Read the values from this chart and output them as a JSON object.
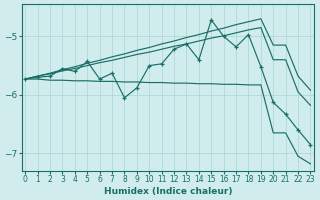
{
  "xlabel": "Humidex (Indice chaleur)",
  "bg_color": "#d0ecec",
  "line_color": "#1a6e6a",
  "xlim": [
    -0.3,
    23.3
  ],
  "ylim": [
    -7.3,
    -4.45
  ],
  "yticks": [
    -7,
    -6,
    -5
  ],
  "xticks": [
    0,
    1,
    2,
    3,
    4,
    5,
    6,
    7,
    8,
    9,
    10,
    11,
    12,
    13,
    14,
    15,
    16,
    17,
    18,
    19,
    20,
    21,
    22,
    23
  ],
  "upper_x": [
    0,
    1,
    2,
    3,
    4,
    5,
    6,
    7,
    8,
    9,
    10,
    11,
    12,
    13,
    14,
    15,
    16,
    17,
    18,
    19,
    20,
    21,
    22,
    23
  ],
  "upper_y": [
    -5.73,
    -5.68,
    -5.63,
    -5.57,
    -5.52,
    -5.46,
    -5.41,
    -5.35,
    -5.3,
    -5.24,
    -5.19,
    -5.13,
    -5.08,
    -5.02,
    -4.97,
    -4.91,
    -4.86,
    -4.8,
    -4.75,
    -4.7,
    -5.15,
    -5.15,
    -5.68,
    -5.92
  ],
  "mid_x": [
    0,
    1,
    2,
    3,
    4,
    5,
    6,
    7,
    8,
    9,
    10,
    11,
    12,
    13,
    14,
    15,
    16,
    17,
    18,
    19,
    20,
    21,
    22,
    23
  ],
  "mid_y": [
    -5.73,
    -5.68,
    -5.64,
    -5.59,
    -5.55,
    -5.5,
    -5.45,
    -5.41,
    -5.36,
    -5.31,
    -5.27,
    -5.22,
    -5.17,
    -5.13,
    -5.08,
    -5.03,
    -4.99,
    -4.94,
    -4.89,
    -4.85,
    -5.4,
    -5.4,
    -5.95,
    -6.18
  ],
  "lower_x": [
    0,
    1,
    2,
    3,
    4,
    5,
    6,
    7,
    8,
    9,
    10,
    11,
    12,
    13,
    14,
    15,
    16,
    17,
    18,
    19,
    20,
    21,
    22,
    23
  ],
  "lower_y": [
    -5.73,
    -5.73,
    -5.75,
    -5.75,
    -5.76,
    -5.76,
    -5.77,
    -5.77,
    -5.78,
    -5.78,
    -5.79,
    -5.79,
    -5.8,
    -5.8,
    -5.81,
    -5.81,
    -5.82,
    -5.82,
    -5.83,
    -5.83,
    -6.65,
    -6.65,
    -7.05,
    -7.18
  ],
  "data_x": [
    0,
    1,
    2,
    3,
    4,
    5,
    6,
    7,
    8,
    9,
    10,
    11,
    12,
    13,
    14,
    15,
    16,
    17,
    18,
    19,
    20,
    21,
    22,
    23
  ],
  "data_y": [
    -5.73,
    -5.7,
    -5.68,
    -5.55,
    -5.6,
    -5.43,
    -5.73,
    -5.63,
    -6.05,
    -5.88,
    -5.5,
    -5.47,
    -5.22,
    -5.13,
    -5.4,
    -4.72,
    -5.0,
    -5.18,
    -4.97,
    -5.52,
    -6.13,
    -6.33,
    -6.6,
    -6.85
  ]
}
